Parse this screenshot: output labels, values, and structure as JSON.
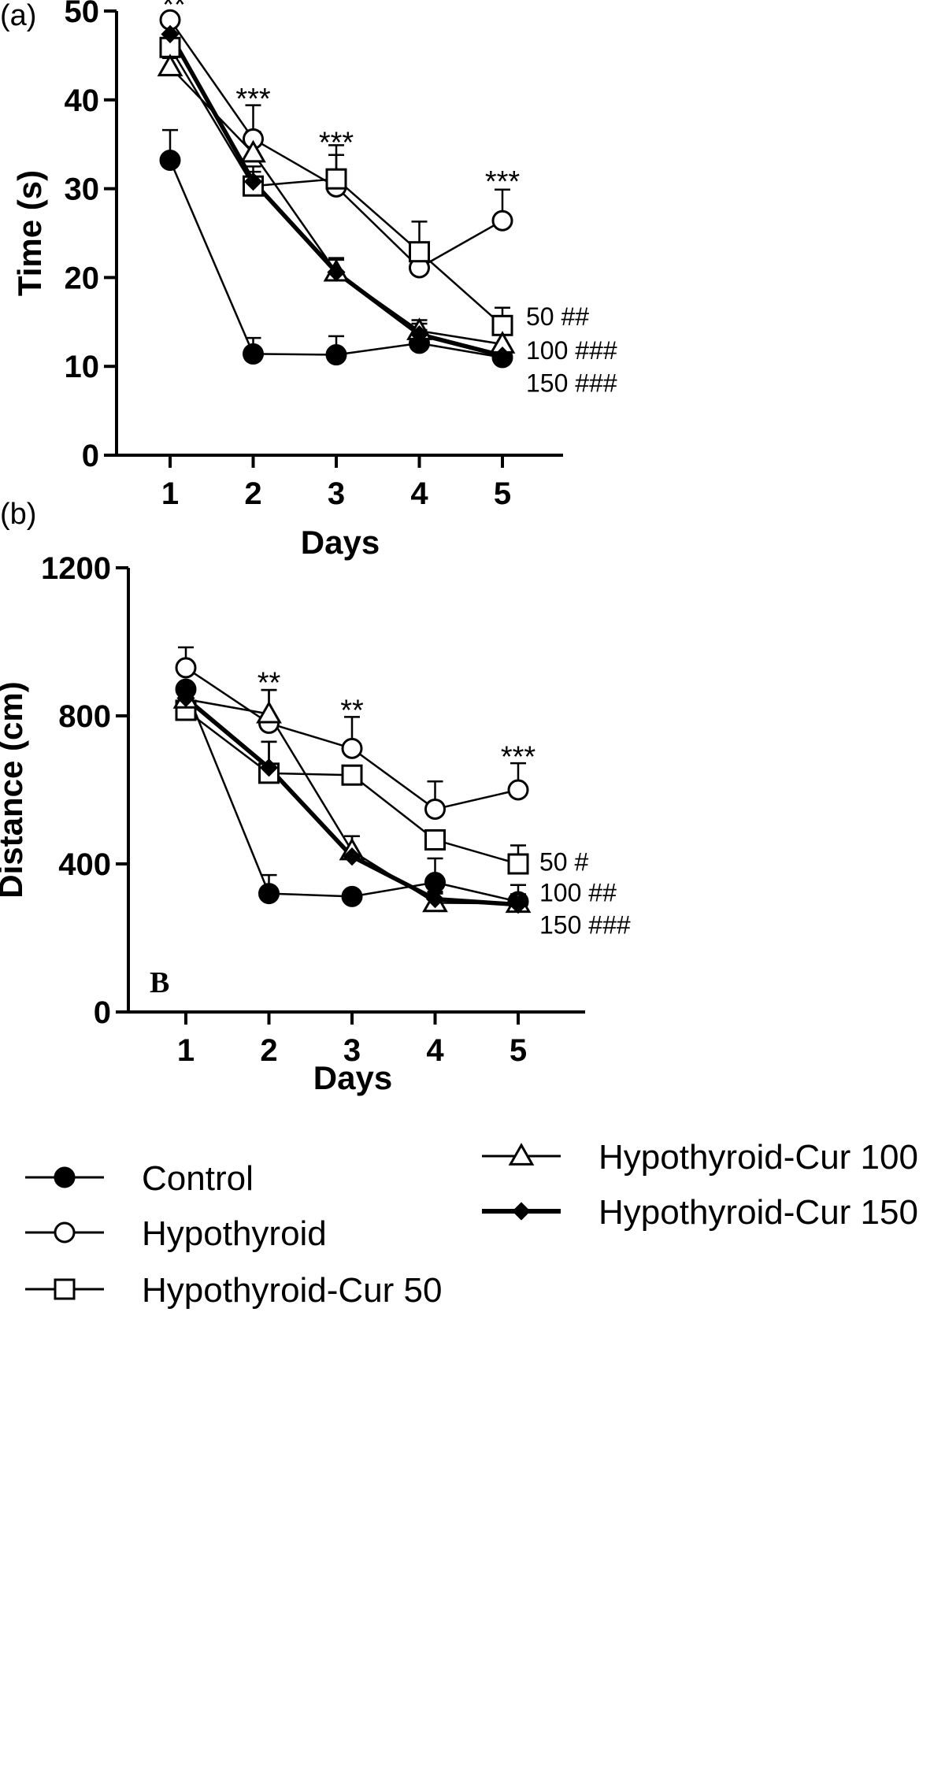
{
  "chart_data": [
    {
      "type": "line",
      "panel_label": "(a)",
      "xlabel": "Days",
      "ylabel": "Time (s)",
      "categories": [
        "1",
        "2",
        "3",
        "4",
        "5"
      ],
      "x": [
        1,
        2,
        3,
        4,
        5
      ],
      "ylim": [
        0,
        50
      ],
      "yticks": [
        0,
        10,
        20,
        30,
        40,
        50
      ],
      "grid": false,
      "series": [
        {
          "name": "Control",
          "values": [
            33.2,
            11.4,
            11.3,
            12.6,
            11.0
          ],
          "errors": [
            3.4,
            1.8,
            2.1,
            1.5,
            1.2
          ],
          "marker": "circle-filled",
          "line": "thin"
        },
        {
          "name": "Hypothyroid",
          "values": [
            49.0,
            35.6,
            30.2,
            21.1,
            26.4
          ],
          "errors": [
            0,
            3.8,
            3.6,
            2.4,
            3.5
          ],
          "marker": "circle-open",
          "line": "thin"
        },
        {
          "name": "Hypothyroid-Cur 50",
          "values": [
            45.9,
            30.3,
            31.1,
            22.9,
            14.6
          ],
          "errors": [
            0,
            1.6,
            3.8,
            3.4,
            2.0
          ],
          "marker": "square-open",
          "line": "thin"
        },
        {
          "name": "Hypothyroid-Cur 100",
          "values": [
            43.7,
            34.0,
            20.6,
            14.0,
            12.5
          ],
          "errors": [
            1.0,
            2.4,
            1.6,
            1.2,
            1.2
          ],
          "marker": "triangle-open",
          "line": "thin"
        },
        {
          "name": "Hypothyroid-Cur 150",
          "values": [
            47.4,
            30.8,
            20.6,
            13.6,
            11.2
          ],
          "errors": [
            0,
            1.7,
            1.4,
            1.2,
            1.1
          ],
          "marker": "diamond-filled",
          "line": "thick"
        }
      ],
      "significance_labels": [
        {
          "x": 1,
          "y": 50.3,
          "text": "**"
        },
        {
          "x": 2,
          "y": 39.7,
          "text": "***"
        },
        {
          "x": 3,
          "y": 34.8,
          "text": "***"
        },
        {
          "x": 5,
          "y": 30.4,
          "text": "***"
        }
      ],
      "dose_labels": [
        {
          "text": "50 ##",
          "y": 15.6
        },
        {
          "text": "100 ###",
          "y": 11.8
        },
        {
          "text": "150 ###",
          "y": 8.1
        }
      ]
    },
    {
      "type": "line",
      "panel_label": "(b)",
      "inset_label": "B",
      "xlabel": "Days",
      "ylabel": "Distance (cm)",
      "categories": [
        "1",
        "2",
        "3",
        "4",
        "5"
      ],
      "x": [
        1,
        2,
        3,
        4,
        5
      ],
      "ylim": [
        0,
        1200
      ],
      "yticks": [
        0,
        400,
        800,
        1200
      ],
      "grid": false,
      "series": [
        {
          "name": "Control",
          "values": [
            872,
            320,
            312,
            350,
            298
          ],
          "errors": [
            0,
            50,
            0,
            65,
            45
          ],
          "marker": "circle-filled",
          "line": "thin"
        },
        {
          "name": "Hypothyroid",
          "values": [
            930,
            780,
            712,
            548,
            600
          ],
          "errors": [
            55,
            90,
            85,
            75,
            72
          ],
          "marker": "circle-open",
          "line": "thin"
        },
        {
          "name": "Hypothyroid-Cur 50",
          "values": [
            815,
            645,
            640,
            465,
            400
          ],
          "errors": [
            25,
            85,
            0,
            0,
            50
          ],
          "marker": "square-open",
          "line": "thin"
        },
        {
          "name": "Hypothyroid-Cur 100",
          "values": [
            845,
            805,
            435,
            295,
            293
          ],
          "errors": [
            20,
            65,
            40,
            25,
            25
          ],
          "marker": "triangle-open",
          "line": "thin"
        },
        {
          "name": "Hypothyroid-Cur 150",
          "values": [
            848,
            660,
            420,
            305,
            290
          ],
          "errors": [
            20,
            70,
            55,
            20,
            25
          ],
          "marker": "diamond-filled",
          "line": "thick"
        }
      ],
      "significance_labels": [
        {
          "x": 2,
          "y": 880,
          "text": "**"
        },
        {
          "x": 3,
          "y": 805,
          "text": "**"
        },
        {
          "x": 5,
          "y": 680,
          "text": "***"
        }
      ],
      "dose_labels": [
        {
          "text": "50 #",
          "y": 405
        },
        {
          "text": "100 ##",
          "y": 322
        },
        {
          "text": "150 ###",
          "y": 235
        }
      ]
    }
  ],
  "legend": {
    "placement": "bottom",
    "items": [
      {
        "label": "Control",
        "marker": "circle-filled",
        "line": "thin"
      },
      {
        "label": "Hypothyroid",
        "marker": "circle-open",
        "line": "thin"
      },
      {
        "label": "Hypothyroid-Cur 50",
        "marker": "square-open",
        "line": "thin"
      },
      {
        "label": "Hypothyroid-Cur 100",
        "marker": "triangle-open",
        "line": "thin"
      },
      {
        "label": "Hypothyroid-Cur 150",
        "marker": "diamond-filled",
        "line": "thick"
      }
    ]
  }
}
